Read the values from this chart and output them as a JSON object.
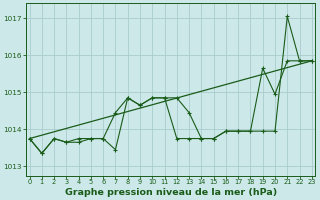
{
  "title": "Graphe pression niveau de la mer (hPa)",
  "x_values": [
    0,
    1,
    2,
    3,
    4,
    5,
    6,
    7,
    8,
    9,
    10,
    11,
    12,
    13,
    14,
    15,
    16,
    17,
    18,
    19,
    20,
    21,
    22,
    23
  ],
  "series1": [
    1013.75,
    1013.35,
    1013.75,
    1013.65,
    1013.75,
    1013.75,
    1013.75,
    1013.45,
    1014.85,
    1014.65,
    1014.85,
    1014.85,
    1013.75,
    1013.75,
    1013.75,
    1013.75,
    1013.95,
    1013.95,
    1013.95,
    1013.95,
    1013.95,
    1017.05,
    1015.85,
    1015.85
  ],
  "series2": [
    1013.75,
    1013.35,
    1013.75,
    1013.65,
    1013.65,
    1013.75,
    1013.75,
    1014.45,
    1014.85,
    1014.65,
    1014.85,
    1014.85,
    1014.85,
    1014.45,
    1013.75,
    1013.75,
    1013.95,
    1013.95,
    1013.95,
    1015.65,
    1014.95,
    1015.85,
    1015.85,
    1015.85
  ],
  "trend_x": [
    0,
    23
  ],
  "trend_y": [
    1013.75,
    1015.85
  ],
  "ylim": [
    1012.75,
    1017.4
  ],
  "yticks": [
    1013,
    1014,
    1015,
    1016,
    1017
  ],
  "xlim": [
    -0.3,
    23.3
  ],
  "xticks": [
    0,
    1,
    2,
    3,
    4,
    5,
    6,
    7,
    8,
    9,
    10,
    11,
    12,
    13,
    14,
    15,
    16,
    17,
    18,
    19,
    20,
    21,
    22,
    23
  ],
  "line_color": "#1a5c1a",
  "bg_color": "#cce8e8",
  "grid_color": "#aacccc",
  "title_color": "#1a5c1a",
  "title_fontsize": 6.8,
  "tick_fontsize": 4.8,
  "ytick_fontsize": 5.2
}
